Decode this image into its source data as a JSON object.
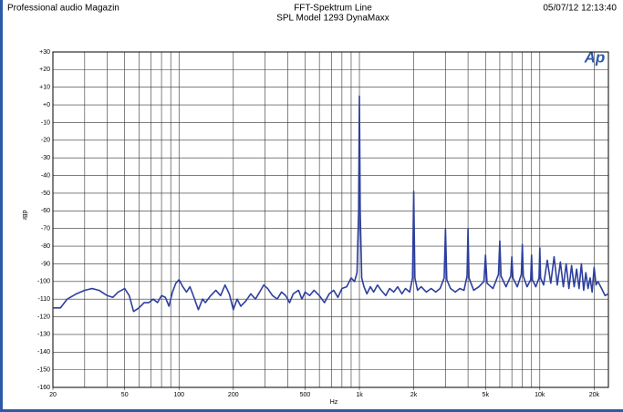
{
  "header": {
    "left": "Professional audio Magazin",
    "date": "05/07/12 12:13:40",
    "logo": "Ap"
  },
  "chart_data": {
    "type": "line",
    "title": "FFT-Spektrum Line",
    "subtitle": "SPL Model 1293 DynaMaxx",
    "xlabel": "Hz",
    "ylabel": "dBr",
    "xscale": "log",
    "grid": true,
    "xlim": [
      20,
      24000
    ],
    "ylim": [
      -160,
      30
    ],
    "xticks": [
      20,
      50,
      100,
      200,
      500,
      {
        "value": 1000,
        "label": "1k"
      },
      {
        "value": 2000,
        "label": "2k"
      },
      {
        "value": 5000,
        "label": "5k"
      },
      {
        "value": 10000,
        "label": "10k"
      },
      {
        "value": 20000,
        "label": "20k"
      }
    ],
    "xgrid": [
      20,
      30,
      40,
      50,
      60,
      70,
      80,
      90,
      100,
      200,
      300,
      400,
      500,
      600,
      700,
      800,
      900,
      1000,
      2000,
      3000,
      4000,
      5000,
      6000,
      7000,
      8000,
      9000,
      10000,
      20000
    ],
    "yticks": [
      {
        "value": 30,
        "label": "+30"
      },
      {
        "value": 20,
        "label": "+20"
      },
      {
        "value": 10,
        "label": "+10"
      },
      {
        "value": 0,
        "label": "+0"
      },
      -10,
      -20,
      -30,
      -40,
      -50,
      -60,
      -70,
      -80,
      -90,
      -100,
      -110,
      -120,
      -130,
      -140,
      -150,
      -160
    ],
    "color": "#2d3f9e",
    "x": [
      20,
      22,
      24,
      27,
      30,
      33,
      36,
      40,
      43,
      46,
      50,
      53,
      56,
      60,
      64,
      68,
      72,
      76,
      80,
      84,
      88,
      92,
      96,
      100,
      105,
      110,
      115,
      120,
      128,
      135,
      140,
      150,
      160,
      170,
      180,
      190,
      200,
      210,
      220,
      235,
      250,
      265,
      280,
      295,
      310,
      330,
      350,
      370,
      390,
      410,
      430,
      460,
      480,
      500,
      530,
      560,
      600,
      640,
      680,
      720,
      760,
      800,
      850,
      900,
      940,
      970,
      990,
      1000,
      1010,
      1030,
      1060,
      1100,
      1150,
      1200,
      1260,
      1320,
      1400,
      1470,
      1550,
      1630,
      1720,
      1800,
      1900,
      1970,
      2000,
      2030,
      2100,
      2200,
      2350,
      2500,
      2650,
      2800,
      2950,
      3000,
      3050,
      3200,
      3400,
      3600,
      3800,
      3950,
      4000,
      4050,
      4300,
      4600,
      4900,
      5000,
      5100,
      5500,
      5900,
      6000,
      6100,
      6500,
      6900,
      7000,
      7100,
      7500,
      7900,
      8000,
      8100,
      8500,
      8900,
      9000,
      9100,
      9500,
      9900,
      10000,
      10100,
      10500,
      11000,
      11500,
      12000,
      12500,
      13000,
      13500,
      14000,
      14500,
      15000,
      15500,
      16000,
      16500,
      17000,
      17500,
      18000,
      18500,
      19000,
      19500,
      20000,
      20500,
      21000,
      22000,
      23000,
      24000
    ],
    "values": [
      -115,
      -115,
      -110,
      -107,
      -105,
      -104,
      -105,
      -108,
      -109,
      -106,
      -104,
      -108,
      -117,
      -115,
      -112,
      -112,
      -110,
      -112,
      -108,
      -109,
      -114,
      -106,
      -101,
      -99,
      -103,
      -106,
      -103,
      -108,
      -116,
      -110,
      -112,
      -108,
      -105,
      -108,
      -102,
      -107,
      -116,
      -110,
      -114,
      -111,
      -107,
      -110,
      -106,
      -102,
      -104,
      -108,
      -110,
      -106,
      -108,
      -112,
      -107,
      -105,
      -110,
      -106,
      -108,
      -105,
      -108,
      -112,
      -107,
      -105,
      -109,
      -104,
      -103,
      -98,
      -100,
      -95,
      -60,
      5,
      -60,
      -98,
      -103,
      -107,
      -103,
      -106,
      -102,
      -105,
      -108,
      -104,
      -106,
      -103,
      -107,
      -104,
      -106,
      -98,
      -49,
      -98,
      -105,
      -103,
      -106,
      -104,
      -106,
      -104,
      -98,
      -70,
      -99,
      -104,
      -106,
      -104,
      -105,
      -97,
      -70,
      -98,
      -105,
      -103,
      -100,
      -85,
      -101,
      -104,
      -96,
      -77,
      -97,
      -103,
      -97,
      -86,
      -98,
      -103,
      -96,
      -79,
      -97,
      -103,
      -99,
      -85,
      -99,
      -103,
      -98,
      -81,
      -98,
      -102,
      -88,
      -101,
      -86,
      -102,
      -89,
      -103,
      -90,
      -104,
      -91,
      -103,
      -93,
      -104,
      -90,
      -105,
      -95,
      -104,
      -98,
      -106,
      -92,
      -102,
      -100,
      -104,
      -108,
      -107
    ]
  }
}
